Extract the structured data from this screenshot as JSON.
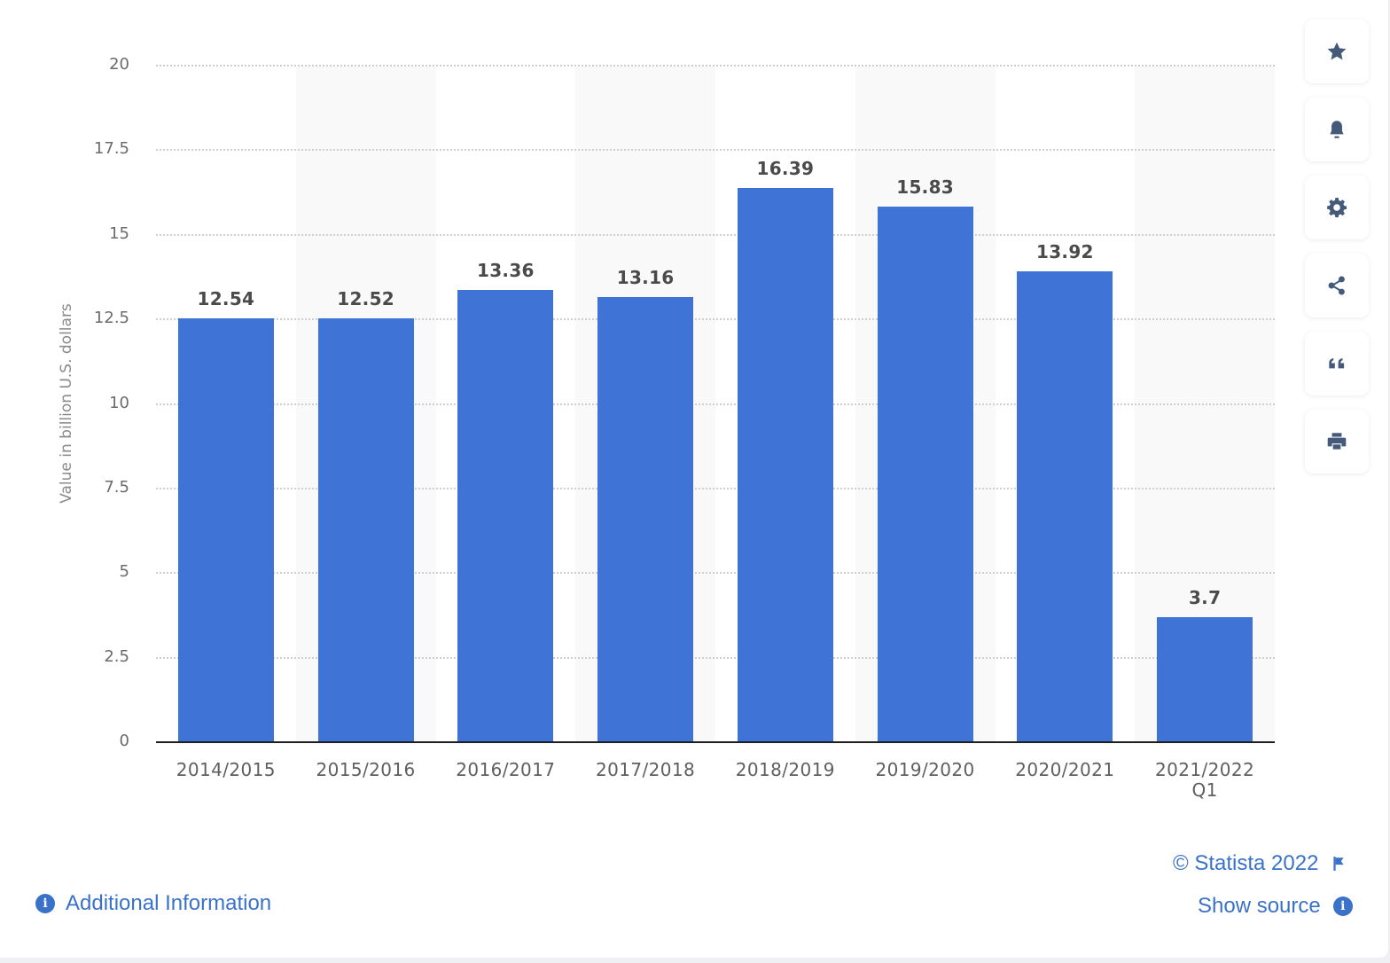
{
  "chart_data": {
    "type": "bar",
    "title": "",
    "xlabel": "",
    "ylabel": "Value in billion U.S. dollars",
    "ylim": [
      0,
      20
    ],
    "yticks": [
      "0",
      "2.5",
      "5",
      "7.5",
      "10",
      "12.5",
      "15",
      "17.5",
      "20"
    ],
    "categories": [
      "2014/2015",
      "2015/2016",
      "2016/2017",
      "2017/2018",
      "2018/2019",
      "2019/2020",
      "2020/2021",
      "2021/2022 Q1"
    ],
    "category_lines": [
      [
        "2014/2015"
      ],
      [
        "2015/2016"
      ],
      [
        "2016/2017"
      ],
      [
        "2017/2018"
      ],
      [
        "2018/2019"
      ],
      [
        "2019/2020"
      ],
      [
        "2020/2021"
      ],
      [
        "2021/2022",
        "Q1"
      ]
    ],
    "values": [
      12.54,
      12.52,
      13.36,
      13.16,
      16.39,
      15.83,
      13.92,
      3.7
    ],
    "value_labels": [
      "12.54",
      "12.52",
      "13.36",
      "13.16",
      "16.39",
      "15.83",
      "13.92",
      "3.7"
    ],
    "grid": true,
    "legend": null,
    "bar_color": "#3f73d6"
  },
  "toolbar": {
    "buttons": [
      {
        "name": "favorite",
        "icon": "star-icon"
      },
      {
        "name": "notify",
        "icon": "bell-icon"
      },
      {
        "name": "settings",
        "icon": "gear-icon"
      },
      {
        "name": "share",
        "icon": "share-icon"
      },
      {
        "name": "cite",
        "icon": "quote-icon"
      },
      {
        "name": "print",
        "icon": "printer-icon"
      }
    ]
  },
  "footer": {
    "copyright": "© Statista 2022",
    "show_source": "Show source",
    "additional_info": "Additional Information",
    "info_glyph": "i",
    "link_color": "#3a72c9"
  }
}
